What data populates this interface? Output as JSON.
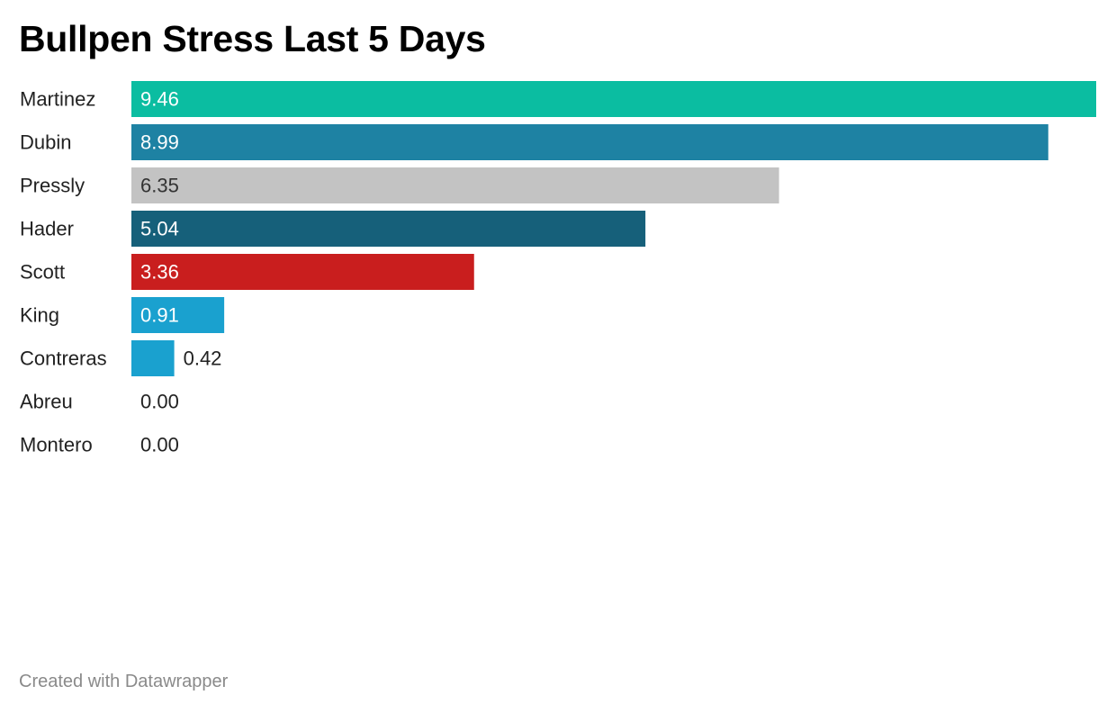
{
  "chart_data": {
    "type": "bar",
    "orientation": "horizontal",
    "title": "Bullpen Stress Last 5 Days",
    "categories": [
      "Martinez",
      "Dubin",
      "Pressly",
      "Hader",
      "Scott",
      "King",
      "Contreras",
      "Abreu",
      "Montero"
    ],
    "values": [
      9.46,
      8.99,
      6.35,
      5.04,
      3.36,
      0.91,
      0.42,
      0.0,
      0.0
    ],
    "value_labels": [
      "9.46",
      "8.99",
      "6.35",
      "5.04",
      "3.36",
      "0.91",
      "0.42",
      "0.00",
      "0.00"
    ],
    "colors": [
      "#0bbda1",
      "#1e82a3",
      "#c3c3c3",
      "#16607a",
      "#c91e1e",
      "#1aa1cf",
      "#1aa1cf",
      "#1aa1cf",
      "#1aa1cf"
    ],
    "xlim": [
      0,
      9.46
    ],
    "grid": false,
    "legend": "none"
  },
  "footer": {
    "credit": "Created with Datawrapper"
  }
}
